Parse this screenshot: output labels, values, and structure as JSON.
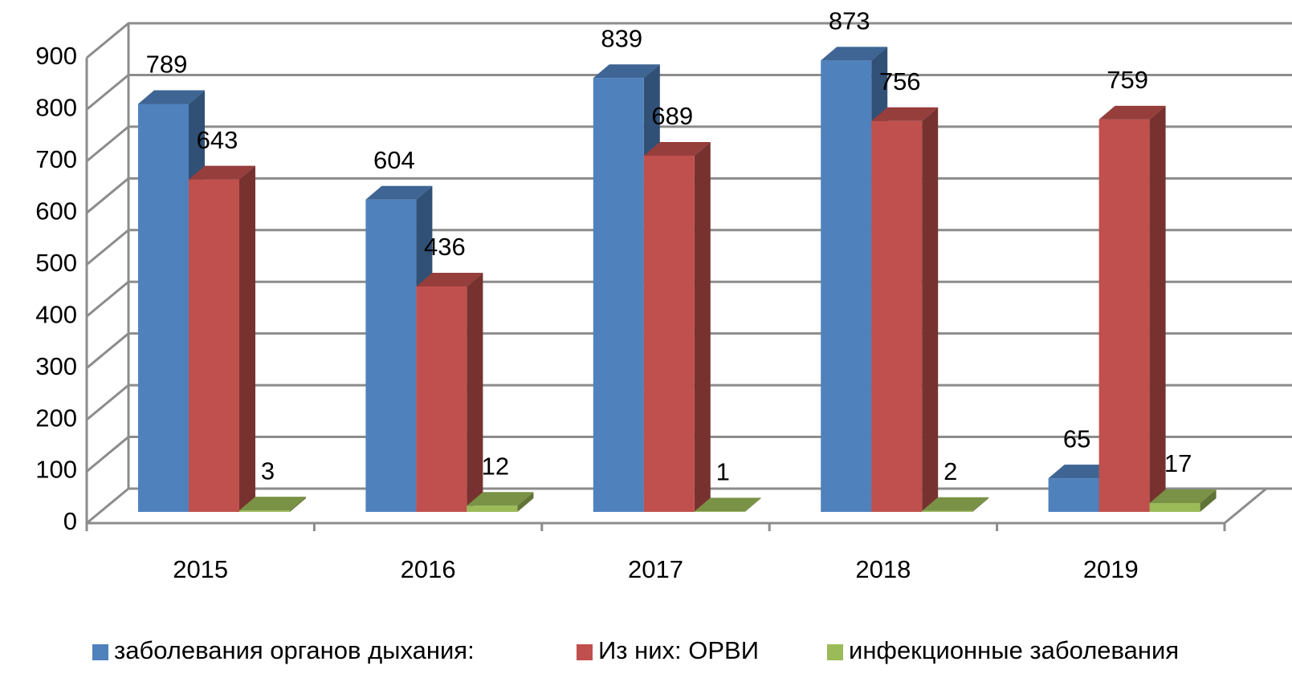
{
  "chart_data": {
    "type": "bar3d",
    "categories": [
      "2015",
      "2016",
      "2017",
      "2018",
      "2019"
    ],
    "series": [
      {
        "name": "заболевания органов дыхания:",
        "color": "#4f81bd",
        "values": [
          789,
          604,
          839,
          873,
          65
        ]
      },
      {
        "name": "Из них: ОРВИ",
        "color": "#c0504d",
        "values": [
          643,
          436,
          689,
          756,
          759
        ]
      },
      {
        "name": "инфекционные заболевания",
        "color": "#9bbb59",
        "values": [
          3,
          12,
          1,
          2,
          17
        ]
      }
    ],
    "ylim": [
      0,
      900
    ],
    "yticks": [
      0,
      100,
      200,
      300,
      400,
      500,
      600,
      700,
      800,
      900
    ],
    "grid": true,
    "legend": "bottom"
  }
}
